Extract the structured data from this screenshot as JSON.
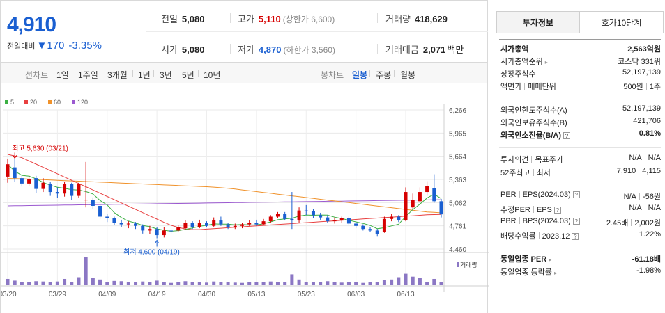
{
  "quote": {
    "price": "4,910",
    "change_label": "전일대비",
    "change_icon": "down-triangle-icon",
    "change_value": "170",
    "change_pct": "-3.35%",
    "prev_label": "전일",
    "prev_value": "5,080",
    "high_label": "고가",
    "high_value": "5,110",
    "high_sub": "(상한가 6,600)",
    "volume_label": "거래량",
    "volume_value": "418,629",
    "open_label": "시가",
    "open_value": "5,080",
    "low_label": "저가",
    "low_value": "4,870",
    "low_sub": "(하한가 3,560)",
    "amount_label": "거래대금",
    "amount_value": "2,071",
    "amount_unit": "백만"
  },
  "toolbar": {
    "line_head": "선차트",
    "line_items": [
      "1일",
      "1주일",
      "3개월",
      "1년",
      "3년",
      "5년",
      "10년"
    ],
    "candle_head": "봉차트",
    "candle_items": [
      "일봉",
      "주봉",
      "월봉"
    ],
    "candle_active": "일봉"
  },
  "colors": {
    "up": "#d60000",
    "down": "#1a5fd1",
    "ma5": "#3cb043",
    "ma20": "#e84040",
    "ma60": "#f0922b",
    "ma120": "#9b59d0",
    "volume": "#8b77c4"
  },
  "chart_data": {
    "type": "candlestick",
    "legend": [
      {
        "name": "5",
        "color": "#3cb043"
      },
      {
        "name": "20",
        "color": "#e84040"
      },
      {
        "name": "60",
        "color": "#f0922b"
      },
      {
        "name": "120",
        "color": "#9b59d0"
      }
    ],
    "y_ticks": [
      "6,266",
      "5,965",
      "5,664",
      "5,363",
      "5,062",
      "4,761",
      "4,460"
    ],
    "ylim": [
      4460,
      6266
    ],
    "x_labels": [
      "03/20",
      "03/29",
      "04/09",
      "04/19",
      "04/30",
      "05/13",
      "05/23",
      "06/03",
      "06/13"
    ],
    "x_label_index": [
      0,
      7,
      14,
      21,
      28,
      35,
      42,
      49,
      56
    ],
    "annotations": {
      "high": {
        "text": "최고 5,630 (03/21)",
        "index": 1,
        "value": 5630
      },
      "low": {
        "text": "최저 4,600 (04/19)",
        "index": 21,
        "value": 4600
      }
    },
    "volume_label": "거래량",
    "candles": [
      {
        "o": 5400,
        "c": 5560,
        "h": 5630,
        "l": 5320,
        "v": 0.22
      },
      {
        "o": 5520,
        "c": 5380,
        "h": 5630,
        "l": 5330,
        "v": 0.16
      },
      {
        "o": 5380,
        "c": 5310,
        "h": 5420,
        "l": 5270,
        "v": 0.12
      },
      {
        "o": 5310,
        "c": 5370,
        "h": 5420,
        "l": 5280,
        "v": 0.1
      },
      {
        "o": 5380,
        "c": 5240,
        "h": 5410,
        "l": 5190,
        "v": 0.14
      },
      {
        "o": 5240,
        "c": 5320,
        "h": 5380,
        "l": 5200,
        "v": 0.13
      },
      {
        "o": 5300,
        "c": 5200,
        "h": 5330,
        "l": 5150,
        "v": 0.11
      },
      {
        "o": 5200,
        "c": 5180,
        "h": 5260,
        "l": 5120,
        "v": 0.13
      },
      {
        "o": 5180,
        "c": 5300,
        "h": 5330,
        "l": 5140,
        "v": 0.22
      },
      {
        "o": 5300,
        "c": 5150,
        "h": 5320,
        "l": 5100,
        "v": 0.1
      },
      {
        "o": 5150,
        "c": 5300,
        "h": 5320,
        "l": 5120,
        "v": 0.28
      },
      {
        "o": 5100,
        "c": 5100,
        "h": 5590,
        "l": 5000,
        "v": 1.0
      },
      {
        "o": 5100,
        "c": 5020,
        "h": 5130,
        "l": 4980,
        "v": 0.25
      },
      {
        "o": 5020,
        "c": 4880,
        "h": 5040,
        "l": 4850,
        "v": 0.2
      },
      {
        "o": 4880,
        "c": 4860,
        "h": 4920,
        "l": 4810,
        "v": 0.12
      },
      {
        "o": 4860,
        "c": 4800,
        "h": 4880,
        "l": 4770,
        "v": 0.15
      },
      {
        "o": 4800,
        "c": 4780,
        "h": 4840,
        "l": 4740,
        "v": 0.14
      },
      {
        "o": 4780,
        "c": 4790,
        "h": 4820,
        "l": 4730,
        "v": 0.12
      },
      {
        "o": 4790,
        "c": 4760,
        "h": 4810,
        "l": 4720,
        "v": 0.1
      },
      {
        "o": 4760,
        "c": 4700,
        "h": 4780,
        "l": 4660,
        "v": 0.13
      },
      {
        "o": 4700,
        "c": 4720,
        "h": 4760,
        "l": 4650,
        "v": 0.12
      },
      {
        "o": 4720,
        "c": 4640,
        "h": 4740,
        "l": 4600,
        "v": 0.16
      },
      {
        "o": 4640,
        "c": 4700,
        "h": 4740,
        "l": 4610,
        "v": 0.12
      },
      {
        "o": 4700,
        "c": 4690,
        "h": 4720,
        "l": 4660,
        "v": 0.08
      },
      {
        "o": 4700,
        "c": 4740,
        "h": 4770,
        "l": 4680,
        "v": 0.11
      },
      {
        "o": 4730,
        "c": 4800,
        "h": 4830,
        "l": 4710,
        "v": 0.14
      },
      {
        "o": 4800,
        "c": 4740,
        "h": 4820,
        "l": 4720,
        "v": 0.1
      },
      {
        "o": 4740,
        "c": 4800,
        "h": 4840,
        "l": 4730,
        "v": 0.12
      },
      {
        "o": 4800,
        "c": 4760,
        "h": 4820,
        "l": 4740,
        "v": 0.09
      },
      {
        "o": 4760,
        "c": 4830,
        "h": 4870,
        "l": 4750,
        "v": 0.13
      },
      {
        "o": 4830,
        "c": 4780,
        "h": 4880,
        "l": 4760,
        "v": 0.12
      },
      {
        "o": 4780,
        "c": 4740,
        "h": 4800,
        "l": 4720,
        "v": 0.1
      },
      {
        "o": 4740,
        "c": 4760,
        "h": 4790,
        "l": 4720,
        "v": 0.09
      },
      {
        "o": 4760,
        "c": 4780,
        "h": 4800,
        "l": 4730,
        "v": 0.08
      },
      {
        "o": 4780,
        "c": 4800,
        "h": 4830,
        "l": 4760,
        "v": 0.12
      },
      {
        "o": 4800,
        "c": 4780,
        "h": 4840,
        "l": 4760,
        "v": 0.11
      },
      {
        "o": 4780,
        "c": 4820,
        "h": 4850,
        "l": 4770,
        "v": 0.1
      },
      {
        "o": 4820,
        "c": 4880,
        "h": 4900,
        "l": 4800,
        "v": 0.13
      },
      {
        "o": 4880,
        "c": 4920,
        "h": 4940,
        "l": 4860,
        "v": 0.12
      },
      {
        "o": 4920,
        "c": 4850,
        "h": 4940,
        "l": 4830,
        "v": 0.11
      },
      {
        "o": 4850,
        "c": 4830,
        "h": 5200,
        "l": 4720,
        "v": 0.38
      },
      {
        "o": 4830,
        "c": 4960,
        "h": 5000,
        "l": 4800,
        "v": 0.2
      },
      {
        "o": 4960,
        "c": 4950,
        "h": 5030,
        "l": 4900,
        "v": 0.12
      },
      {
        "o": 4950,
        "c": 4900,
        "h": 4980,
        "l": 4860,
        "v": 0.1
      },
      {
        "o": 4900,
        "c": 4870,
        "h": 4930,
        "l": 4840,
        "v": 0.12
      },
      {
        "o": 4870,
        "c": 4820,
        "h": 4900,
        "l": 4800,
        "v": 0.14
      },
      {
        "o": 4820,
        "c": 4830,
        "h": 4870,
        "l": 4790,
        "v": 0.1
      },
      {
        "o": 4830,
        "c": 4860,
        "h": 4880,
        "l": 4800,
        "v": 0.09
      },
      {
        "o": 4860,
        "c": 4790,
        "h": 4880,
        "l": 4770,
        "v": 0.1
      },
      {
        "o": 4790,
        "c": 4760,
        "h": 4810,
        "l": 4730,
        "v": 0.11
      },
      {
        "o": 4760,
        "c": 4720,
        "h": 4780,
        "l": 4700,
        "v": 0.08
      },
      {
        "o": 4720,
        "c": 4700,
        "h": 4740,
        "l": 4680,
        "v": 0.1
      },
      {
        "o": 4700,
        "c": 4650,
        "h": 4720,
        "l": 4620,
        "v": 0.12
      },
      {
        "o": 4680,
        "c": 4850,
        "h": 4880,
        "l": 4670,
        "v": 0.18
      },
      {
        "o": 4850,
        "c": 4880,
        "h": 4920,
        "l": 4820,
        "v": 0.2
      },
      {
        "o": 4880,
        "c": 4830,
        "h": 4900,
        "l": 4810,
        "v": 0.28
      },
      {
        "o": 4830,
        "c": 5200,
        "h": 5260,
        "l": 4820,
        "v": 0.4
      },
      {
        "o": 5000,
        "c": 5100,
        "h": 5180,
        "l": 4980,
        "v": 0.3
      },
      {
        "o": 5080,
        "c": 5200,
        "h": 5260,
        "l": 5060,
        "v": 0.25
      },
      {
        "o": 5200,
        "c": 5280,
        "h": 5340,
        "l": 5150,
        "v": 0.1
      },
      {
        "o": 5250,
        "c": 5080,
        "h": 5430,
        "l": 5060,
        "v": 0.22
      },
      {
        "o": 5080,
        "c": 4910,
        "h": 5110,
        "l": 4870,
        "v": 0.12
      }
    ]
  },
  "side": {
    "tab_info": "투자정보",
    "tab_hoga": "호가10단계",
    "market_cap_label": "시가총액",
    "market_cap_value": "2,563억원",
    "rank_label": "시가총액순위",
    "rank_value": "코스닥 331위",
    "shares_label": "상장주식수",
    "shares_value": "52,197,139",
    "par_label": "액면가",
    "lot_label": "매매단위",
    "par_value": "500원",
    "lot_value": "1주",
    "foreign_limit_label": "외국인한도주식수(A)",
    "foreign_limit_value": "52,197,139",
    "foreign_hold_label": "외국인보유주식수(B)",
    "foreign_hold_value": "421,706",
    "foreign_ratio_label": "외국인소진율(B/A)",
    "foreign_ratio_value": "0.81%",
    "opinion_label": "투자의견",
    "target_label": "목표주가",
    "opinion_value": "N/A",
    "target_value": "N/A",
    "w52_label": "52주최고",
    "w52_low_label": "최저",
    "w52_high_value": "7,910",
    "w52_low_value": "4,115",
    "per_label": "PER",
    "eps_label": "EPS(2024.03)",
    "per_value": "N/A",
    "eps_value": "-56원",
    "eper_label": "추정PER",
    "eeps_label": "EPS",
    "eper_value": "N/A",
    "eeps_value": "N/A",
    "pbr_label": "PBR",
    "bps_label": "BPS(2024.03)",
    "pbr_value": "2.45배",
    "bps_value": "2,002원",
    "div_label": "배당수익률",
    "div_date": "2023.12",
    "div_value": "1.22%",
    "ind_per_label": "동일업종 PER",
    "ind_per_value": "-61.18배",
    "ind_rate_label": "동일업종 등락률",
    "ind_rate_value": "-1.98%"
  }
}
